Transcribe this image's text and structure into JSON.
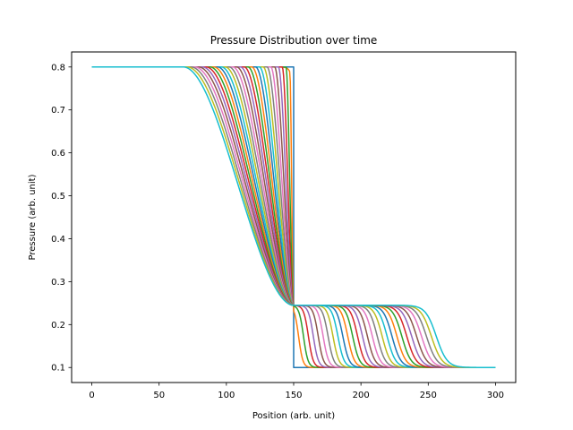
{
  "chart_data": {
    "type": "line",
    "title": "Pressure Distribution over time",
    "xlabel": "Position (arb. unit)",
    "ylabel": "Pressure (arb. unit)",
    "xlim": [
      -15,
      315
    ],
    "ylim": [
      0.065,
      0.835
    ],
    "xticks": [
      0,
      50,
      100,
      150,
      200,
      250,
      300
    ],
    "yticks": [
      0.1,
      0.2,
      0.3,
      0.4,
      0.5,
      0.6,
      0.7,
      0.8
    ],
    "grid": false,
    "legend": "none",
    "colors": [
      "#1f77b4",
      "#ff7f0e",
      "#2ca02c",
      "#d62728",
      "#9467bd",
      "#8c564b",
      "#e377c2",
      "#7f7f7f",
      "#bcbd22",
      "#17becf"
    ],
    "shock_tube": {
      "x_min": 0,
      "x_max": 300,
      "diaphragm_x": 150,
      "p_left": 0.8,
      "p_middle": 0.245,
      "p_right": 0.1,
      "num_series": 30,
      "final_rarefaction_head_x": 68,
      "final_shock_x": 256
    }
  }
}
